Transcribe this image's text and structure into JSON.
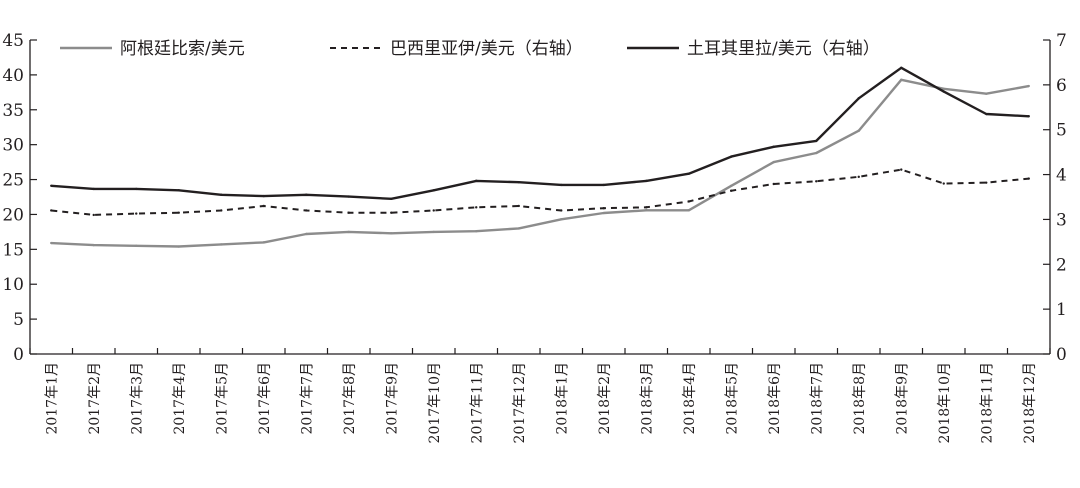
{
  "chart_data": {
    "type": "line",
    "categories": [
      "2017年1月",
      "2017年2月",
      "2017年3月",
      "2017年4月",
      "2017年5月",
      "2017年6月",
      "2017年7月",
      "2017年8月",
      "2017年9月",
      "2017年10月",
      "2017年11月",
      "2017年12月",
      "2018年1月",
      "2018年2月",
      "2018年3月",
      "2018年4月",
      "2018年5月",
      "2018年6月",
      "2018年7月",
      "2018年8月",
      "2018年9月",
      "2018年10月",
      "2018年11月",
      "2018年12月"
    ],
    "ylim_left": [
      0,
      45
    ],
    "yticks_left": [
      0,
      5,
      10,
      15,
      20,
      25,
      30,
      35,
      40,
      45
    ],
    "ylim_right": [
      0,
      7
    ],
    "yticks_right": [
      0,
      1,
      2,
      3,
      4,
      5,
      6,
      7
    ],
    "grid": false,
    "legend_position": "top",
    "series": [
      {
        "name": "阿根廷比索/美元",
        "axis": "left",
        "style": "solid",
        "color": "#8c8c8c",
        "values": [
          15.9,
          15.6,
          15.5,
          15.4,
          15.7,
          16.0,
          17.2,
          17.5,
          17.3,
          17.5,
          17.6,
          18.0,
          19.3,
          20.2,
          20.6,
          20.6,
          24.1,
          27.5,
          28.8,
          32.0,
          39.3,
          38.0,
          37.3,
          38.4
        ]
      },
      {
        "name": "巴西里亚伊/美元（右轴）",
        "axis": "right",
        "style": "dashed",
        "color": "#231f20",
        "values": [
          3.2,
          3.1,
          3.13,
          3.15,
          3.2,
          3.3,
          3.2,
          3.15,
          3.15,
          3.2,
          3.27,
          3.3,
          3.2,
          3.25,
          3.27,
          3.4,
          3.64,
          3.79,
          3.85,
          3.95,
          4.11,
          3.8,
          3.82,
          3.91
        ]
      },
      {
        "name": "土耳其里拉/美元（右轴）",
        "axis": "right",
        "style": "solid",
        "color": "#231f20",
        "values": [
          3.75,
          3.68,
          3.68,
          3.65,
          3.55,
          3.52,
          3.55,
          3.51,
          3.46,
          3.65,
          3.86,
          3.83,
          3.77,
          3.77,
          3.86,
          4.02,
          4.4,
          4.62,
          4.75,
          5.7,
          6.38,
          5.85,
          5.35,
          5.3
        ]
      }
    ]
  }
}
